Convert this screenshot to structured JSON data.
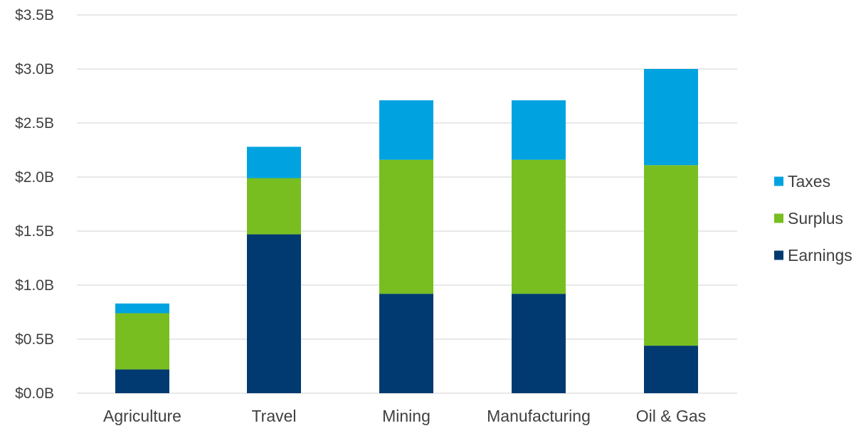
{
  "chart_data": {
    "type": "bar",
    "stacked": true,
    "title": "",
    "xlabel": "",
    "ylabel": "",
    "categories": [
      "Agriculture",
      "Travel",
      "Mining",
      "Manufacturing",
      "Oil & Gas"
    ],
    "series": [
      {
        "name": "Earnings",
        "color": "#003A70",
        "values": [
          0.22,
          1.47,
          0.92,
          0.92,
          0.44
        ]
      },
      {
        "name": "Surplus",
        "color": "#78BE20",
        "values": [
          0.52,
          0.52,
          1.24,
          1.24,
          1.67
        ]
      },
      {
        "name": "Taxes",
        "color": "#00A3E0",
        "values": [
          0.09,
          0.29,
          0.55,
          0.55,
          0.89
        ]
      }
    ],
    "ylim": [
      0,
      3.5
    ],
    "yticks": [
      {
        "value": 0.0,
        "label": "$0.0B"
      },
      {
        "value": 0.5,
        "label": "$0.5B"
      },
      {
        "value": 1.0,
        "label": "$1.0B"
      },
      {
        "value": 1.5,
        "label": "$1.5B"
      },
      {
        "value": 2.0,
        "label": "$2.0B"
      },
      {
        "value": 2.5,
        "label": "$2.5B"
      },
      {
        "value": 3.0,
        "label": "$3.0B"
      },
      {
        "value": 3.5,
        "label": "$3.5B"
      }
    ],
    "grid": true,
    "gridline_color": "#D9D9D9",
    "legend": {
      "position": "right",
      "order": [
        "Taxes",
        "Surplus",
        "Earnings"
      ]
    }
  }
}
